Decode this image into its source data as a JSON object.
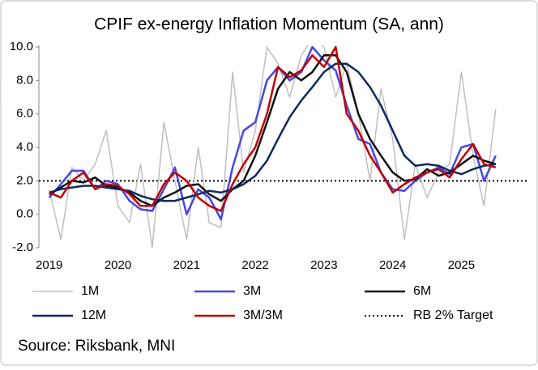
{
  "chart_data": {
    "type": "line",
    "title": "CPIF ex-energy Inflation Momentum (SA, ann)",
    "source": "Source: Riksbank,  MNI",
    "x": [
      2019.0,
      2019.17,
      2019.33,
      2019.5,
      2019.67,
      2019.83,
      2020.0,
      2020.17,
      2020.33,
      2020.5,
      2020.67,
      2020.83,
      2021.0,
      2021.17,
      2021.33,
      2021.5,
      2021.67,
      2021.83,
      2022.0,
      2022.17,
      2022.33,
      2022.5,
      2022.67,
      2022.83,
      2023.0,
      2023.17,
      2023.33,
      2023.5,
      2023.67,
      2023.83,
      2024.0,
      2024.17,
      2024.33,
      2024.5,
      2024.67,
      2024.83,
      2025.0,
      2025.17,
      2025.33,
      2025.5
    ],
    "xlim": [
      2018.85,
      2025.95
    ],
    "xticks": [
      2019,
      2020,
      2021,
      2022,
      2023,
      2024,
      2025
    ],
    "ylim": [
      -2,
      10
    ],
    "yticks": [
      {
        "value": -2,
        "label": "-2.0"
      },
      {
        "value": 0,
        "label": "0.0"
      },
      {
        "value": 2,
        "label": "2.0"
      },
      {
        "value": 4,
        "label": "4.0"
      },
      {
        "value": 6,
        "label": "6.0"
      },
      {
        "value": 8,
        "label": "8.0"
      },
      {
        "value": 10,
        "label": "10.0"
      }
    ],
    "series": [
      {
        "name": "1M",
        "color": "#bfbfbf",
        "width": 1.5,
        "values": [
          1.5,
          -1.5,
          2.8,
          2.0,
          3.0,
          5.0,
          0.5,
          -0.5,
          3.0,
          -2.0,
          5.5,
          2.0,
          -1.5,
          4.0,
          -0.5,
          -0.8,
          8.5,
          2.5,
          5.0,
          10.0,
          9.0,
          7.0,
          9.5,
          10.5,
          10.0,
          7.0,
          9.0,
          6.0,
          2.0,
          7.5,
          4.5,
          -1.5,
          3.0,
          1.0,
          2.5,
          3.0,
          8.5,
          3.5,
          0.5,
          6.3
        ]
      },
      {
        "name": "3M",
        "color": "#4646e6",
        "width": 2.5,
        "values": [
          1.0,
          1.8,
          2.6,
          2.6,
          1.5,
          2.0,
          1.8,
          0.8,
          0.3,
          0.2,
          1.5,
          2.8,
          0.0,
          1.5,
          1.0,
          -0.3,
          2.8,
          5.0,
          5.5,
          8.0,
          8.8,
          8.0,
          8.5,
          10.0,
          9.2,
          8.6,
          6.5,
          4.5,
          4.2,
          2.5,
          1.5,
          1.4,
          2.0,
          2.5,
          2.8,
          2.4,
          4.0,
          4.2,
          2.0,
          3.5
        ]
      },
      {
        "name": "6M",
        "color": "#111111",
        "width": 2.5,
        "values": [
          1.2,
          1.6,
          2.0,
          1.9,
          2.2,
          1.7,
          1.6,
          1.3,
          0.8,
          0.5,
          1.0,
          1.3,
          1.7,
          1.8,
          1.2,
          0.8,
          1.5,
          2.0,
          3.5,
          5.5,
          7.5,
          8.5,
          8.0,
          8.5,
          9.5,
          9.5,
          8.5,
          6.0,
          4.5,
          3.5,
          2.5,
          2.0,
          2.1,
          2.7,
          2.3,
          2.5,
          3.0,
          3.5,
          3.2,
          3.0
        ]
      },
      {
        "name": "12M",
        "color": "#0b2a5e",
        "width": 2.5,
        "values": [
          1.3,
          1.5,
          1.6,
          1.7,
          1.7,
          1.6,
          1.5,
          1.4,
          1.1,
          0.9,
          0.8,
          0.8,
          1.0,
          1.2,
          1.4,
          1.3,
          1.5,
          1.8,
          2.3,
          3.2,
          4.5,
          5.8,
          6.8,
          7.6,
          8.5,
          9.0,
          9.0,
          8.5,
          7.6,
          6.5,
          5.0,
          3.5,
          2.9,
          3.0,
          2.9,
          2.6,
          2.4,
          2.7,
          2.9,
          3.0
        ]
      },
      {
        "name": "3M/3M",
        "color": "#c00000",
        "width": 2.5,
        "values": [
          1.3,
          1.0,
          2.0,
          2.5,
          1.5,
          1.8,
          1.7,
          1.2,
          0.5,
          0.5,
          1.8,
          2.5,
          2.0,
          1.0,
          0.5,
          0.2,
          1.8,
          3.0,
          4.0,
          6.0,
          8.8,
          8.2,
          8.6,
          9.5,
          8.8,
          10.0,
          6.0,
          5.0,
          3.5,
          2.5,
          1.3,
          1.8,
          2.2,
          2.5,
          2.7,
          2.2,
          3.3,
          4.2,
          3.0,
          2.8
        ]
      }
    ],
    "reference_line": {
      "name": "RB 2% Target",
      "value": 2,
      "color": "#000000",
      "style": "dotted"
    }
  }
}
